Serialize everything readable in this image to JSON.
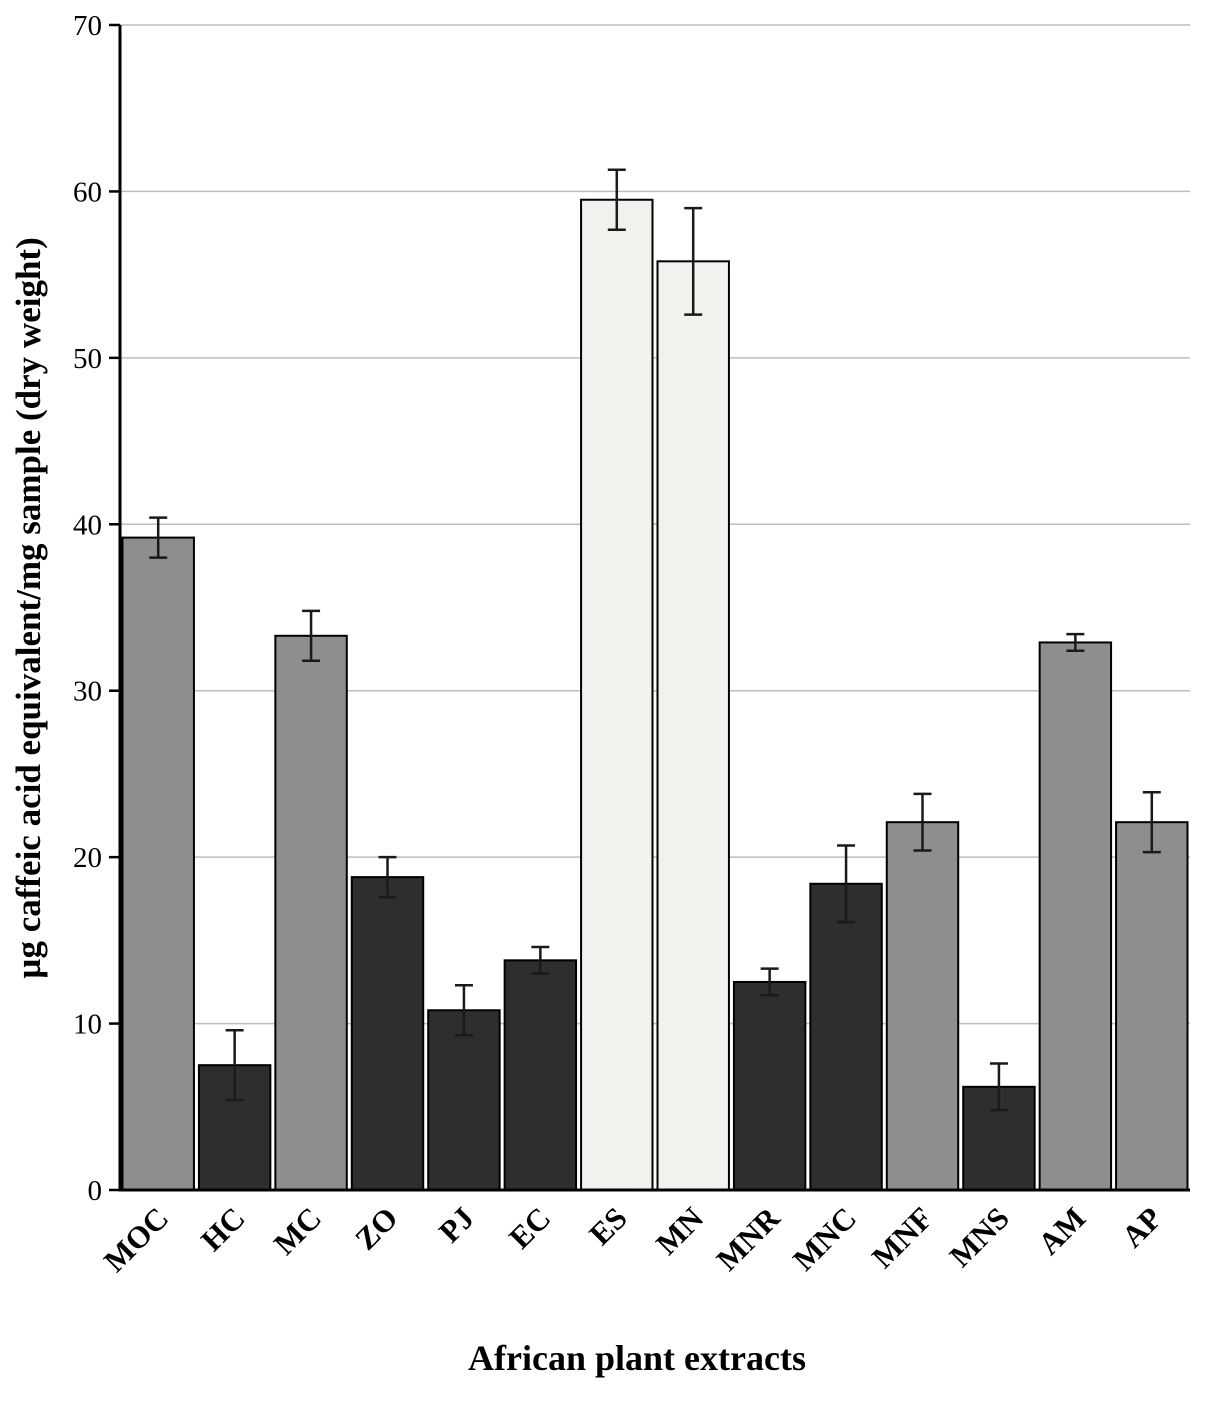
{
  "figure": {
    "background": "#ffffff"
  },
  "chart_data": {
    "type": "bar",
    "title": "",
    "xlabel": "African plant extracts",
    "ylabel": "µg caffeic acid equivalent/mg sample (dry weight)",
    "ylim": [
      0,
      70
    ],
    "ytick_interval": 10,
    "ytick_labels": [
      "0",
      "10",
      "20",
      "30",
      "40",
      "50",
      "60",
      "70"
    ],
    "grid": true,
    "legend": "none",
    "error_bars": true,
    "categories": [
      "MOC",
      "HC",
      "MC",
      "ZO",
      "PJ",
      "EC",
      "ES",
      "MN",
      "MNR",
      "MNC",
      "MNF",
      "MNS",
      "AM",
      "AP"
    ],
    "values": [
      39.2,
      7.5,
      33.3,
      18.8,
      10.8,
      13.8,
      59.5,
      55.8,
      12.5,
      18.4,
      22.1,
      6.2,
      32.9,
      22.1
    ],
    "errors": [
      1.2,
      2.1,
      1.5,
      1.2,
      1.5,
      0.8,
      1.8,
      3.2,
      0.8,
      2.3,
      1.7,
      1.4,
      0.5,
      1.8
    ],
    "bar_fill": [
      "#8e8e8e",
      "#2e2e2e",
      "#8e8e8e",
      "#2e2e2e",
      "#2e2e2e",
      "#2e2e2e",
      "#f2f1ee",
      "#f2f1ee",
      "#2e2e2e",
      "#2e2e2e",
      "#8e8e8e",
      "#2e2e2e",
      "#8e8e8e",
      "#8e8e8e"
    ],
    "colors": {
      "bar_border": "#000000",
      "error_bar": "#1a1a1a",
      "gridline": "#bdbdbd",
      "axis": "#000000",
      "text": "#000000"
    }
  }
}
